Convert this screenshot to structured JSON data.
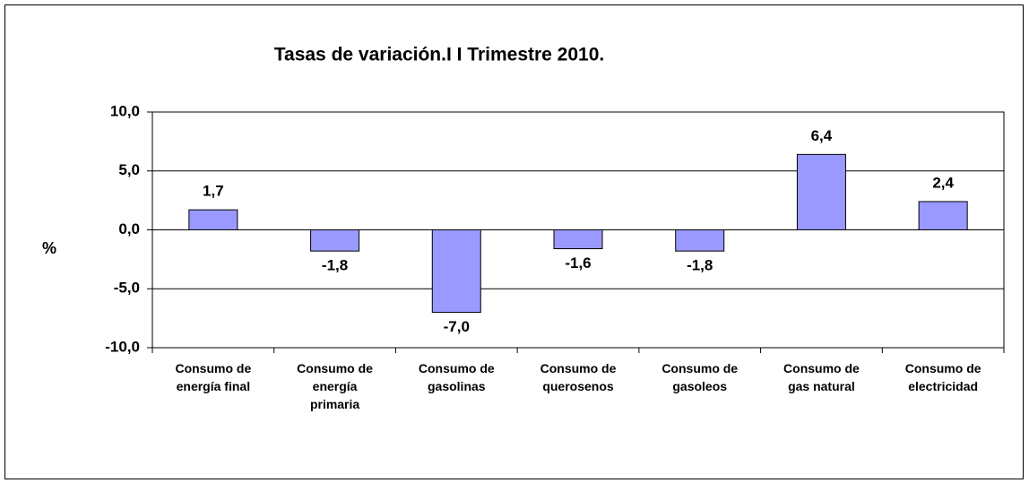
{
  "chart_data": {
    "type": "bar",
    "title": "Tasas de variación.I I Trimestre 2010.",
    "y_label": "%",
    "categories": [
      "Consumo de\nenergía final",
      "Consumo de\nenergía\nprimaria",
      "Consumo de\ngasolinas",
      "Consumo de\nquerosenos",
      "Consumo de\ngasoleos",
      "Consumo de\ngas natural",
      "Consumo de\nelectricidad"
    ],
    "values": [
      1.7,
      -1.8,
      -7.0,
      -1.6,
      -1.8,
      6.4,
      2.4
    ],
    "value_labels": [
      "1,7",
      "-1,8",
      "-7,0",
      "-1,6",
      "-1,8",
      "6,4",
      "2,4"
    ],
    "color": "#9999ff",
    "ylim": [
      -10,
      10
    ],
    "yticks": [
      {
        "value": -10,
        "label": "-10,0"
      },
      {
        "value": -5,
        "label": "-5,0"
      },
      {
        "value": 0,
        "label": "0,0"
      },
      {
        "value": 5,
        "label": "5,0"
      },
      {
        "value": 10,
        "label": "10,0"
      }
    ],
    "grid": true
  }
}
